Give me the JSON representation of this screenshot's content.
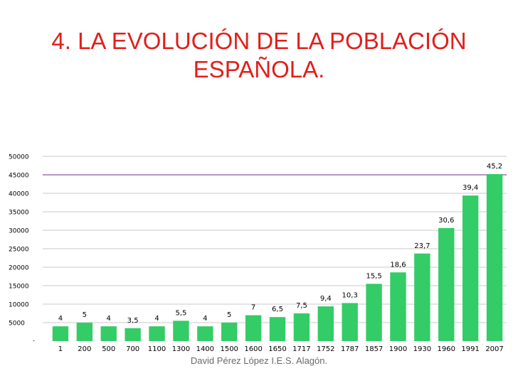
{
  "slide": {
    "title_line1": "4. LA EVOLUCIÓN DE LA POBLACIÓN",
    "title_line2": "ESPAÑOLA.",
    "footer": "David Pérez López I.E.S. Alagón."
  },
  "colors": {
    "title": "#e0201b",
    "bar": "#33cc66",
    "highlight_gridline": "#a070b0",
    "gridline": "#c8c8c8"
  },
  "chart_data": {
    "type": "bar",
    "title": "",
    "xlabel": "",
    "ylabel": "",
    "ylim": [
      0,
      50000
    ],
    "yticks": [
      5000,
      10000,
      15000,
      20000,
      25000,
      30000,
      35000,
      40000,
      45000,
      50000
    ],
    "ytick_labels": [
      "5000",
      "10000",
      "15000",
      "20000",
      "25000",
      "30000",
      "35000",
      "40000",
      "45000",
      "50000"
    ],
    "bottom_tick_label": "·",
    "grid": true,
    "highlight_gridline_value": 45000,
    "categories": [
      "1",
      "200",
      "500",
      "700",
      "1100",
      "1300",
      "1400",
      "1500",
      "1600",
      "1650",
      "1717",
      "1752",
      "1787",
      "1857",
      "1900",
      "1930",
      "1960",
      "1991",
      "2007"
    ],
    "values": [
      4000,
      5000,
      4000,
      3500,
      4000,
      5500,
      4000,
      5000,
      7000,
      6500,
      7500,
      9400,
      10300,
      15500,
      18600,
      23700,
      30600,
      39400,
      45200
    ],
    "data_labels": [
      "4",
      "5",
      "4",
      "3,5",
      "4",
      "5,5",
      "4",
      "5",
      "7",
      "6,5",
      "7,5",
      "9,4",
      "10,3",
      "15,5",
      "18,6",
      "23,7",
      "30,6",
      "39,4",
      "45,2"
    ]
  }
}
